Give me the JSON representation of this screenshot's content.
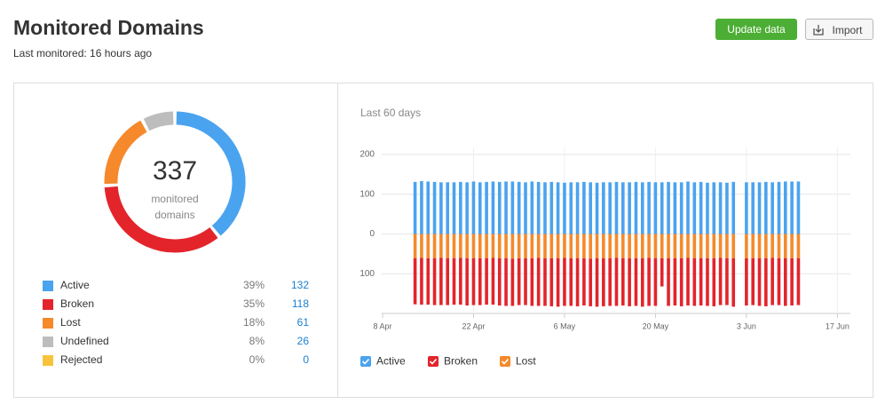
{
  "header": {
    "title": "Monitored Domains",
    "subtitle": "Last monitored: 16 hours ago",
    "buttons": [
      "Update data",
      "Import"
    ]
  },
  "chart_data": [
    {
      "type": "donut",
      "center_value": 337,
      "center_label": "monitored domains",
      "categories": [
        "Active",
        "Broken",
        "Lost",
        "Undefined",
        "Rejected"
      ],
      "values": [
        132,
        118,
        61,
        26,
        0
      ],
      "shares": [
        {
          "value": 39,
          "label": "39%"
        },
        {
          "value": 35,
          "label": "35%"
        },
        {
          "value": 18,
          "label": "18%"
        },
        {
          "value": 8,
          "label": "8%"
        },
        {
          "value": 0,
          "label": "0%"
        }
      ],
      "colors": [
        "#4aa3ef",
        "#e3242b",
        "#f5892b",
        "#bdbdbd",
        "#f8c33a"
      ]
    },
    {
      "type": "diverging_bar",
      "subtitle": "Last 60 days",
      "x": [
        "04-13",
        "04-14",
        "04-15",
        "04-16",
        "04-17",
        "04-18",
        "04-19",
        "04-20",
        "04-21",
        "04-22",
        "04-23",
        "04-24",
        "04-25",
        "04-26",
        "04-27",
        "04-28",
        "04-29",
        "04-30",
        "05-01",
        "05-02",
        "05-03",
        "05-04",
        "05-05",
        "05-06",
        "05-07",
        "05-08",
        "05-09",
        "05-10",
        "05-11",
        "05-12",
        "05-13",
        "05-14",
        "05-15",
        "05-16",
        "05-17",
        "05-18",
        "05-19",
        "05-20",
        "05-21",
        "05-22",
        "05-23",
        "05-24",
        "05-25",
        "05-26",
        "05-27",
        "05-28",
        "05-29",
        "05-30",
        "05-31",
        "06-01",
        "06-02",
        "06-03",
        "06-04",
        "06-05",
        "06-06",
        "06-07",
        "06-08",
        "06-09",
        "06-10",
        "06-11"
      ],
      "series": [
        {
          "name": "Active",
          "color": "#4aa3ef",
          "side": "above",
          "values": [
            131,
            133,
            132,
            131,
            130,
            130,
            130,
            131,
            130,
            132,
            130,
            131,
            132,
            131,
            132,
            132,
            131,
            130,
            132,
            131,
            130,
            131,
            130,
            129,
            130,
            130,
            131,
            130,
            129,
            130,
            130,
            131,
            130,
            130,
            131,
            130,
            131,
            130,
            130,
            131,
            130,
            130,
            132,
            130,
            131,
            129,
            130,
            130,
            129,
            131,
            null,
            130,
            130,
            130,
            131,
            130,
            131,
            132,
            132,
            132
          ]
        },
        {
          "name": "Broken",
          "color": "#e3242b",
          "side": "below",
          "values": [
            116,
            118,
            117,
            118,
            119,
            118,
            117,
            118,
            119,
            118,
            118,
            117,
            118,
            119,
            120,
            119,
            118,
            118,
            120,
            121,
            120,
            121,
            122,
            121,
            120,
            121,
            119,
            120,
            122,
            121,
            120,
            121,
            119,
            121,
            120,
            122,
            121,
            120,
            71,
            120,
            119,
            121,
            120,
            120,
            119,
            120,
            121,
            119,
            118,
            122,
            null,
            119,
            118,
            120,
            121,
            119,
            118,
            120,
            119,
            118
          ]
        },
        {
          "name": "Lost",
          "color": "#f5892b",
          "side": "below",
          "values": [
            61,
            60,
            61,
            61,
            60,
            61,
            61,
            60,
            61,
            61,
            61,
            61,
            60,
            61,
            61,
            62,
            61,
            61,
            61,
            60,
            61,
            61,
            61,
            60,
            61,
            61,
            61,
            62,
            61,
            61,
            61,
            60,
            61,
            61,
            61,
            61,
            60,
            61,
            61,
            61,
            61,
            61,
            60,
            61,
            61,
            61,
            61,
            60,
            61,
            61,
            null,
            61,
            61,
            61,
            61,
            60,
            61,
            61,
            61,
            61
          ]
        }
      ],
      "ylim": [
        -200,
        200
      ],
      "yticks": [
        200,
        100,
        0,
        {
          "value": -100,
          "label": "100"
        }
      ],
      "xlim": [
        "04-08",
        "06-19"
      ],
      "xticks": [
        {
          "value": "04-08",
          "label": "8 Apr"
        },
        {
          "value": "04-22",
          "label": "22 Apr"
        },
        {
          "value": "05-06",
          "label": "6 May"
        },
        {
          "value": "05-20",
          "label": "20 May"
        },
        {
          "value": "06-03",
          "label": "3 Jun"
        },
        {
          "value": "06-17",
          "label": "17 Jun"
        }
      ],
      "grid": true,
      "legend": "bottom-left"
    }
  ]
}
